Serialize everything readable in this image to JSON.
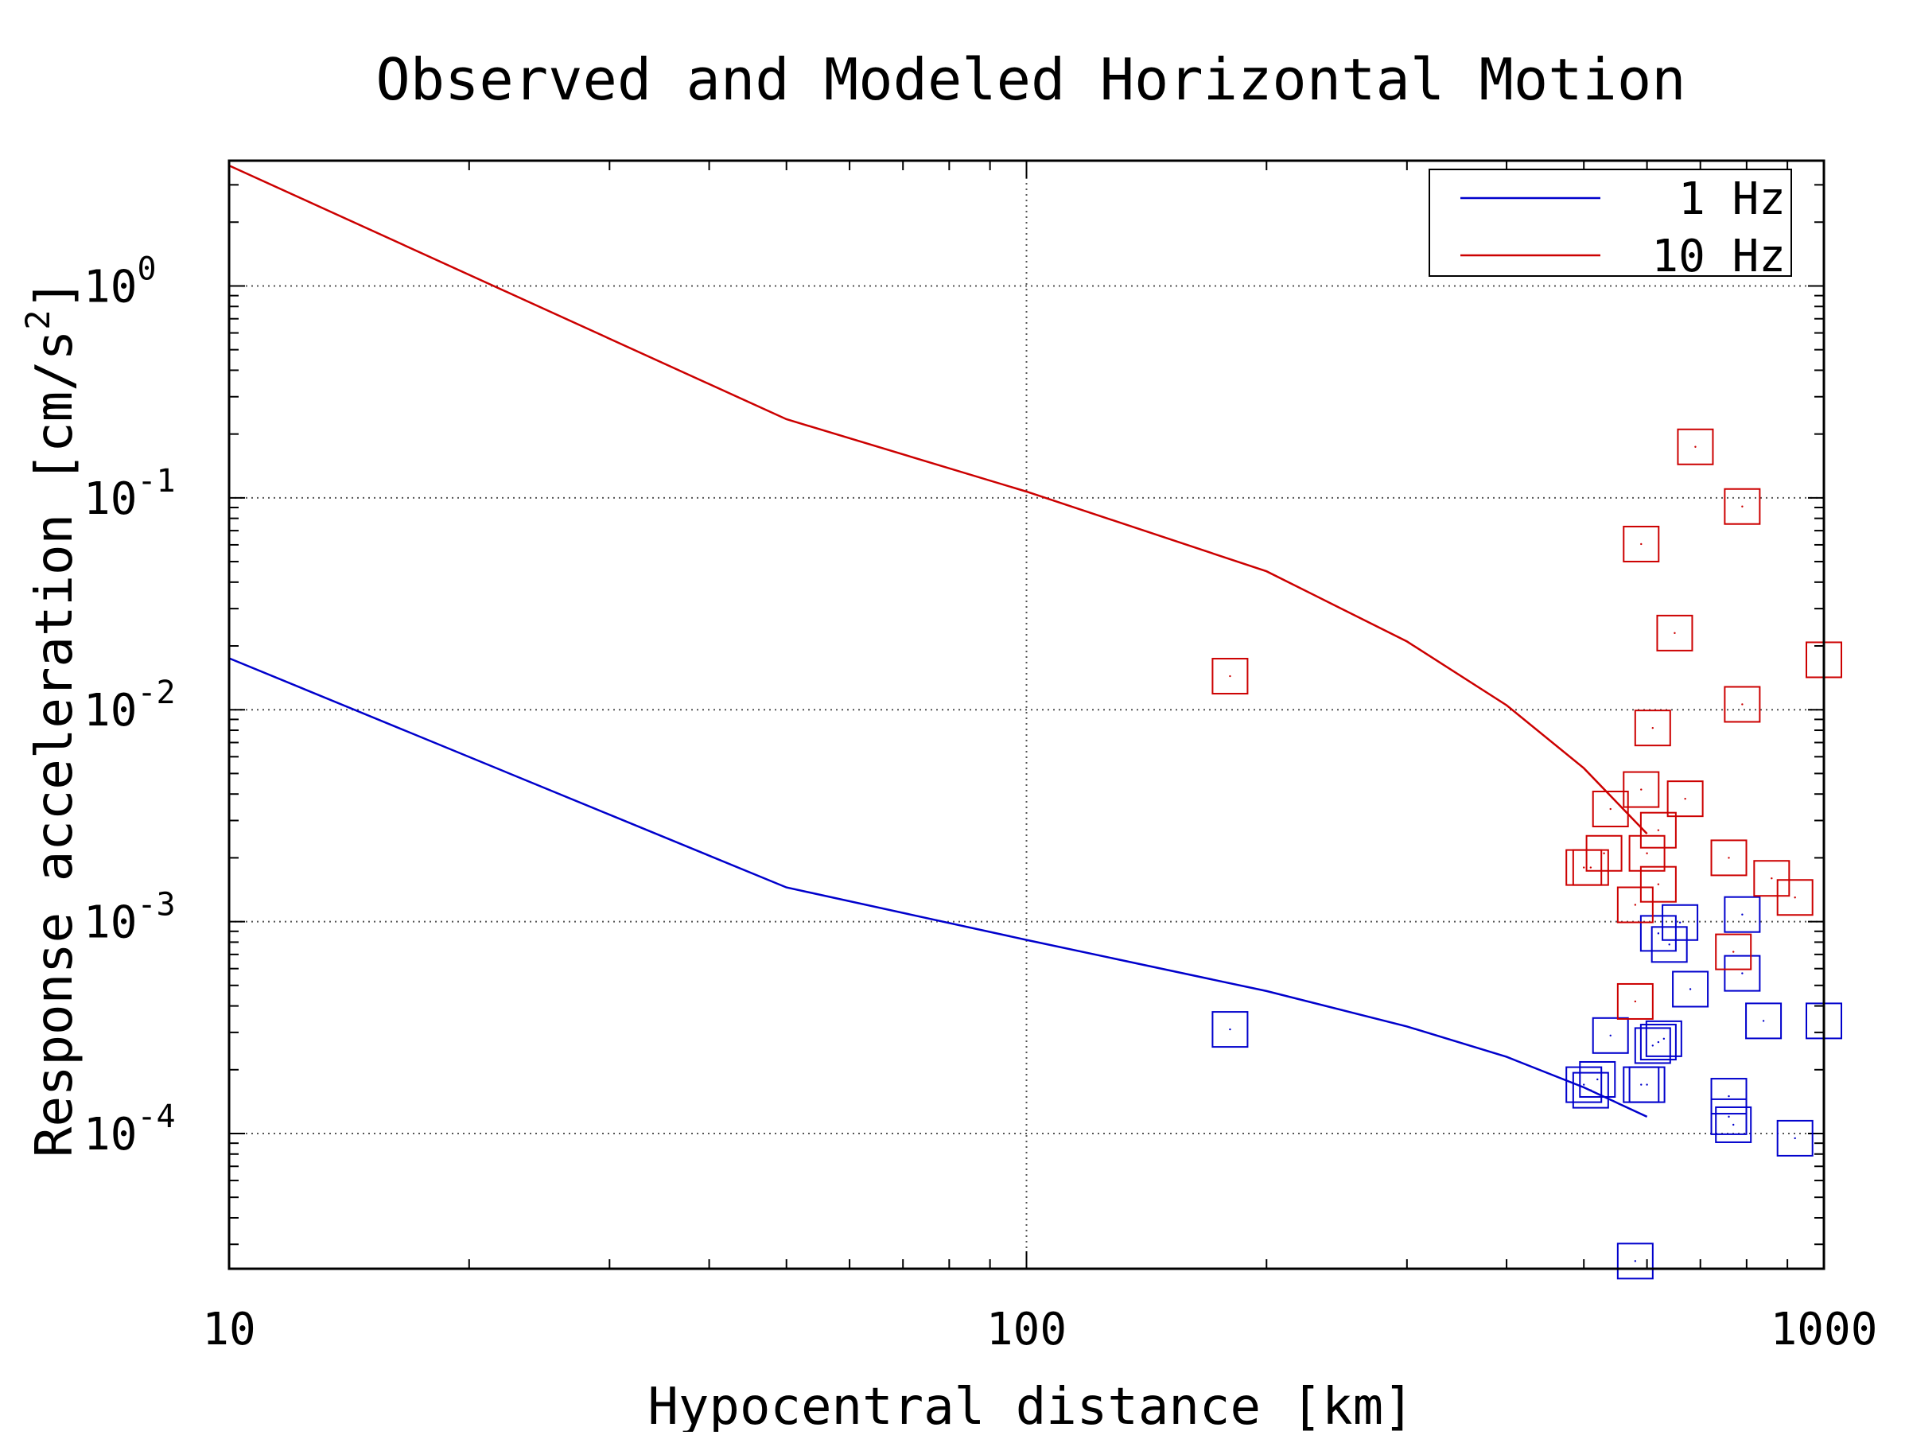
{
  "chart_data": {
    "type": "scatter",
    "title": "Observed and Modeled Horizontal Motion",
    "xlabel": "Hypocentral distance [km]",
    "ylabel_main": "Response acceleration [cm/s",
    "ylabel_sup": "2",
    "ylabel_end": "]",
    "x_scale": "log",
    "y_scale": "log",
    "xlim": [
      10,
      1000
    ],
    "ylim": [
      2.3e-05,
      3.9
    ],
    "x_ticks": [
      {
        "value": 10,
        "label": "10"
      },
      {
        "value": 100,
        "label": "100"
      },
      {
        "value": 1000,
        "label": "1000"
      }
    ],
    "y_ticks": [
      {
        "value": 0.0001,
        "base": "10",
        "exp": "-4"
      },
      {
        "value": 0.001,
        "base": "10",
        "exp": "-3"
      },
      {
        "value": 0.01,
        "base": "10",
        "exp": "-2"
      },
      {
        "value": 0.1,
        "base": "10",
        "exp": "-1"
      },
      {
        "value": 1,
        "base": "10",
        "exp": "0"
      }
    ],
    "grid": true,
    "legend_position": "top-right",
    "series": [
      {
        "name": "1 Hz",
        "color": "#0000cc",
        "line": [
          [
            10,
            0.0175
          ],
          [
            50,
            0.00145
          ],
          [
            100,
            0.00082
          ],
          [
            200,
            0.00047
          ],
          [
            300,
            0.00032
          ],
          [
            400,
            0.00023
          ],
          [
            500,
            0.000165
          ],
          [
            600,
            0.00012
          ]
        ],
        "points": [
          [
            180,
            0.00031
          ],
          [
            500,
            0.00017
          ],
          [
            510,
            0.00016
          ],
          [
            520,
            0.00018
          ],
          [
            540,
            0.00029
          ],
          [
            590,
            0.00017
          ],
          [
            600,
            0.00017
          ],
          [
            610,
            0.00026
          ],
          [
            620,
            0.00027
          ],
          [
            630,
            0.00028
          ],
          [
            620,
            0.00088
          ],
          [
            640,
            0.00078
          ],
          [
            660,
            0.00099
          ],
          [
            680,
            0.00048
          ],
          [
            760,
            0.00015
          ],
          [
            760,
            0.00012
          ],
          [
            770,
            0.00011
          ],
          [
            790,
            0.00108
          ],
          [
            790,
            0.00057
          ],
          [
            840,
            0.00034
          ],
          [
            920,
            9.5e-05
          ],
          [
            1000,
            0.00034
          ],
          [
            580,
            2.5e-05
          ]
        ]
      },
      {
        "name": "10 Hz",
        "color": "#cc0000",
        "line": [
          [
            10,
            3.7
          ],
          [
            50,
            0.235
          ],
          [
            100,
            0.107
          ],
          [
            200,
            0.045
          ],
          [
            300,
            0.021
          ],
          [
            400,
            0.0105
          ],
          [
            500,
            0.0053
          ],
          [
            600,
            0.0026
          ]
        ],
        "points": [
          [
            180,
            0.0144
          ],
          [
            500,
            0.0018
          ],
          [
            510,
            0.0018
          ],
          [
            530,
            0.0021
          ],
          [
            540,
            0.0034
          ],
          [
            580,
            0.0012
          ],
          [
            590,
            0.0605
          ],
          [
            590,
            0.0042
          ],
          [
            600,
            0.0021
          ],
          [
            610,
            0.0082
          ],
          [
            620,
            0.0015
          ],
          [
            620,
            0.0027
          ],
          [
            650,
            0.023
          ],
          [
            670,
            0.0038
          ],
          [
            690,
            0.174
          ],
          [
            760,
            0.002
          ],
          [
            770,
            0.00072
          ],
          [
            790,
            0.091
          ],
          [
            790,
            0.0106
          ],
          [
            860,
            0.0016
          ],
          [
            920,
            0.0013
          ],
          [
            1000,
            0.0172
          ],
          [
            580,
            0.00042
          ]
        ]
      }
    ]
  }
}
